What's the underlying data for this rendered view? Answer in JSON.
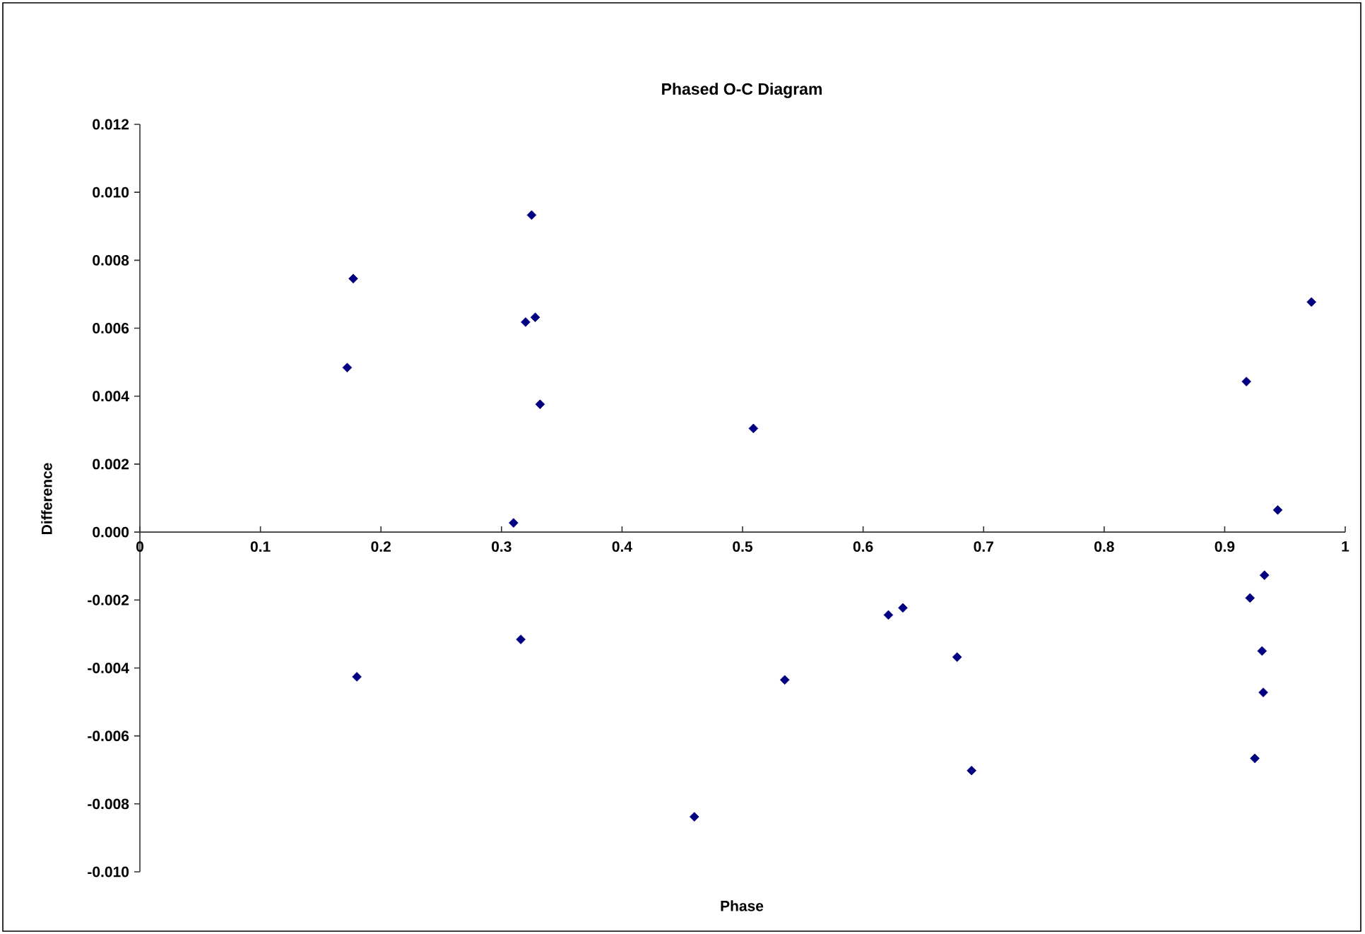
{
  "chart_data": {
    "type": "scatter",
    "title": "Phased O-C Diagram",
    "xlabel": "Phase",
    "ylabel": "Difference",
    "x": [
      0.172,
      0.177,
      0.325,
      0.32,
      0.328,
      0.332,
      0.31,
      0.18,
      0.316,
      0.509,
      0.535,
      0.46,
      0.621,
      0.633,
      0.678,
      0.69,
      0.972,
      0.918,
      0.944,
      0.933,
      0.921,
      0.931,
      0.932,
      0.925
    ],
    "values": [
      0.00484,
      0.00746,
      0.00933,
      0.00618,
      0.00632,
      0.00376,
      0.00027,
      -0.00426,
      -0.00316,
      0.00305,
      -0.00435,
      -0.00838,
      -0.00244,
      -0.00223,
      -0.00368,
      -0.00702,
      0.00677,
      0.00443,
      0.00065,
      -0.00127,
      -0.00194,
      -0.0035,
      -0.00472,
      -0.00666
    ],
    "color": "#000080",
    "marker": "diamond",
    "xlim": [
      0,
      1
    ],
    "ylim": [
      -0.01,
      0.012
    ],
    "xticks": [
      0,
      0.1,
      0.2,
      0.3,
      0.4,
      0.5,
      0.6,
      0.7,
      0.8,
      0.9,
      1
    ],
    "yticks": [
      {
        "value": -0.01,
        "label": "-0.010"
      },
      {
        "value": -0.008,
        "label": "-0.008"
      },
      {
        "value": -0.006,
        "label": "-0.006"
      },
      {
        "value": -0.004,
        "label": "-0.004"
      },
      {
        "value": -0.002,
        "label": "-0.002"
      },
      {
        "value": 0.0,
        "label": "0.000"
      },
      {
        "value": 0.002,
        "label": "0.002"
      },
      {
        "value": 0.004,
        "label": "0.004"
      },
      {
        "value": 0.006,
        "label": "0.006"
      },
      {
        "value": 0.008,
        "label": "0.008"
      },
      {
        "value": 0.01,
        "label": "0.010"
      },
      {
        "value": 0.012,
        "label": "0.012"
      }
    ]
  }
}
